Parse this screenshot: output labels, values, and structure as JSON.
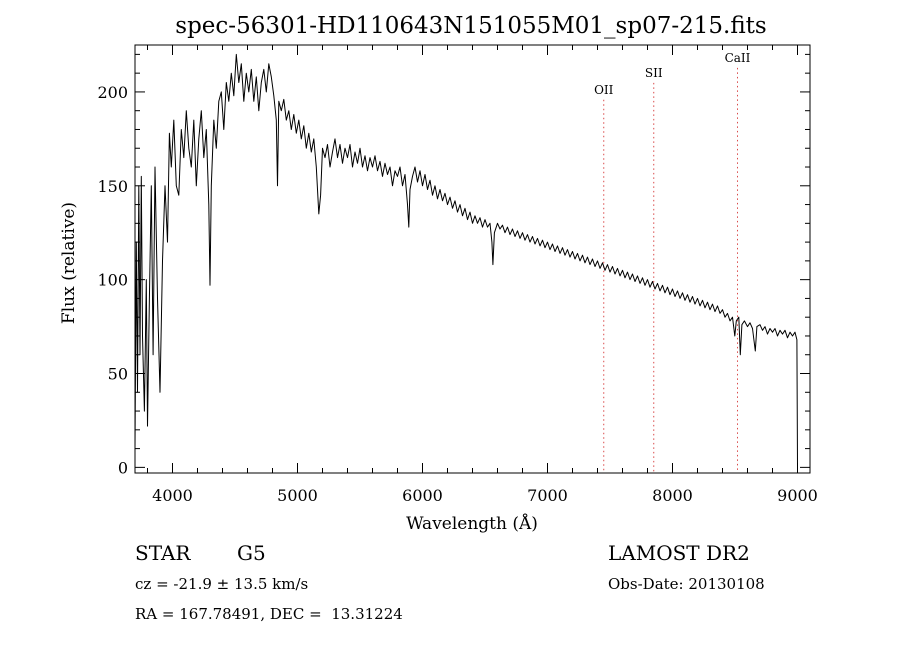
{
  "chart_data": {
    "type": "line",
    "title": "spec-56301-HD110643N151055M01_sp07-215.fits",
    "xlabel": "Wavelength (Å)",
    "ylabel": "Flux (relative)",
    "xlim": [
      3700,
      9100
    ],
    "ylim": [
      -3,
      225
    ],
    "x_ticks": [
      4000,
      5000,
      6000,
      7000,
      8000,
      9000
    ],
    "y_ticks": [
      0,
      50,
      100,
      150,
      200
    ],
    "grid": false,
    "line_color": "#000000",
    "series": [
      {
        "values": [
          [
            3700,
            10
          ],
          [
            3710,
            120
          ],
          [
            3720,
            40
          ],
          [
            3730,
            150
          ],
          [
            3740,
            60
          ],
          [
            3750,
            155
          ],
          [
            3760,
            70
          ],
          [
            3775,
            30
          ],
          [
            3790,
            100
          ],
          [
            3800,
            22
          ],
          [
            3815,
            90
          ],
          [
            3830,
            150
          ],
          [
            3845,
            60
          ],
          [
            3860,
            160
          ],
          [
            3880,
            90
          ],
          [
            3900,
            40
          ],
          [
            3920,
            110
          ],
          [
            3940,
            150
          ],
          [
            3960,
            120
          ],
          [
            3975,
            178
          ],
          [
            3990,
            160
          ],
          [
            4010,
            185
          ],
          [
            4030,
            150
          ],
          [
            4050,
            145
          ],
          [
            4070,
            180
          ],
          [
            4090,
            165
          ],
          [
            4110,
            190
          ],
          [
            4130,
            170
          ],
          [
            4150,
            160
          ],
          [
            4170,
            185
          ],
          [
            4190,
            150
          ],
          [
            4210,
            175
          ],
          [
            4230,
            190
          ],
          [
            4250,
            165
          ],
          [
            4270,
            180
          ],
          [
            4290,
            140
          ],
          [
            4300,
            97
          ],
          [
            4310,
            150
          ],
          [
            4330,
            185
          ],
          [
            4350,
            170
          ],
          [
            4370,
            195
          ],
          [
            4390,
            200
          ],
          [
            4410,
            180
          ],
          [
            4430,
            205
          ],
          [
            4450,
            195
          ],
          [
            4470,
            210
          ],
          [
            4490,
            198
          ],
          [
            4510,
            220
          ],
          [
            4530,
            205
          ],
          [
            4550,
            215
          ],
          [
            4570,
            195
          ],
          [
            4590,
            210
          ],
          [
            4610,
            200
          ],
          [
            4630,
            212
          ],
          [
            4650,
            195
          ],
          [
            4670,
            208
          ],
          [
            4690,
            190
          ],
          [
            4710,
            205
          ],
          [
            4730,
            212
          ],
          [
            4750,
            200
          ],
          [
            4770,
            215
          ],
          [
            4790,
            208
          ],
          [
            4810,
            198
          ],
          [
            4830,
            185
          ],
          [
            4840,
            150
          ],
          [
            4850,
            195
          ],
          [
            4870,
            190
          ],
          [
            4890,
            196
          ],
          [
            4910,
            185
          ],
          [
            4930,
            190
          ],
          [
            4950,
            180
          ],
          [
            4970,
            188
          ],
          [
            4990,
            178
          ],
          [
            5010,
            185
          ],
          [
            5030,
            175
          ],
          [
            5050,
            182
          ],
          [
            5070,
            170
          ],
          [
            5090,
            178
          ],
          [
            5110,
            168
          ],
          [
            5130,
            175
          ],
          [
            5150,
            160
          ],
          [
            5170,
            135
          ],
          [
            5185,
            145
          ],
          [
            5200,
            170
          ],
          [
            5220,
            165
          ],
          [
            5240,
            172
          ],
          [
            5260,
            160
          ],
          [
            5280,
            168
          ],
          [
            5300,
            175
          ],
          [
            5320,
            165
          ],
          [
            5340,
            172
          ],
          [
            5360,
            162
          ],
          [
            5380,
            170
          ],
          [
            5400,
            165
          ],
          [
            5420,
            172
          ],
          [
            5440,
            160
          ],
          [
            5460,
            168
          ],
          [
            5480,
            162
          ],
          [
            5500,
            170
          ],
          [
            5520,
            160
          ],
          [
            5540,
            166
          ],
          [
            5560,
            158
          ],
          [
            5580,
            165
          ],
          [
            5600,
            160
          ],
          [
            5620,
            166
          ],
          [
            5640,
            158
          ],
          [
            5660,
            163
          ],
          [
            5680,
            155
          ],
          [
            5700,
            162
          ],
          [
            5720,
            156
          ],
          [
            5740,
            160
          ],
          [
            5760,
            150
          ],
          [
            5780,
            158
          ],
          [
            5800,
            155
          ],
          [
            5820,
            160
          ],
          [
            5840,
            150
          ],
          [
            5860,
            156
          ],
          [
            5880,
            140
          ],
          [
            5890,
            128
          ],
          [
            5900,
            148
          ],
          [
            5920,
            155
          ],
          [
            5940,
            160
          ],
          [
            5960,
            152
          ],
          [
            5980,
            158
          ],
          [
            6000,
            150
          ],
          [
            6020,
            156
          ],
          [
            6040,
            148
          ],
          [
            6060,
            153
          ],
          [
            6080,
            145
          ],
          [
            6100,
            150
          ],
          [
            6120,
            143
          ],
          [
            6140,
            148
          ],
          [
            6160,
            142
          ],
          [
            6180,
            146
          ],
          [
            6200,
            140
          ],
          [
            6220,
            144
          ],
          [
            6240,
            138
          ],
          [
            6260,
            142
          ],
          [
            6280,
            136
          ],
          [
            6300,
            140
          ],
          [
            6320,
            134
          ],
          [
            6340,
            138
          ],
          [
            6360,
            132
          ],
          [
            6380,
            136
          ],
          [
            6400,
            130
          ],
          [
            6420,
            134
          ],
          [
            6440,
            130
          ],
          [
            6460,
            133
          ],
          [
            6480,
            128
          ],
          [
            6500,
            132
          ],
          [
            6520,
            128
          ],
          [
            6540,
            130
          ],
          [
            6555,
            120
          ],
          [
            6563,
            108
          ],
          [
            6575,
            125
          ],
          [
            6600,
            130
          ],
          [
            6620,
            127
          ],
          [
            6640,
            129
          ],
          [
            6660,
            125
          ],
          [
            6680,
            128
          ],
          [
            6700,
            124
          ],
          [
            6720,
            127
          ],
          [
            6740,
            123
          ],
          [
            6760,
            126
          ],
          [
            6780,
            122
          ],
          [
            6800,
            125
          ],
          [
            6820,
            121
          ],
          [
            6840,
            124
          ],
          [
            6860,
            120
          ],
          [
            6880,
            123
          ],
          [
            6900,
            119
          ],
          [
            6920,
            122
          ],
          [
            6940,
            118
          ],
          [
            6960,
            121
          ],
          [
            6980,
            117
          ],
          [
            7000,
            120
          ],
          [
            7020,
            116
          ],
          [
            7040,
            119
          ],
          [
            7060,
            115
          ],
          [
            7080,
            118
          ],
          [
            7100,
            114
          ],
          [
            7120,
            117
          ],
          [
            7140,
            113
          ],
          [
            7160,
            116
          ],
          [
            7180,
            112
          ],
          [
            7200,
            115
          ],
          [
            7220,
            111
          ],
          [
            7240,
            114
          ],
          [
            7260,
            110
          ],
          [
            7280,
            113
          ],
          [
            7300,
            109
          ],
          [
            7320,
            112
          ],
          [
            7340,
            108
          ],
          [
            7360,
            111
          ],
          [
            7380,
            107
          ],
          [
            7400,
            110
          ],
          [
            7420,
            106
          ],
          [
            7440,
            109
          ],
          [
            7460,
            105
          ],
          [
            7480,
            108
          ],
          [
            7500,
            104
          ],
          [
            7520,
            107
          ],
          [
            7540,
            103
          ],
          [
            7560,
            106
          ],
          [
            7580,
            102
          ],
          [
            7600,
            105
          ],
          [
            7620,
            101
          ],
          [
            7640,
            104
          ],
          [
            7660,
            100
          ],
          [
            7680,
            103
          ],
          [
            7700,
            99
          ],
          [
            7720,
            102
          ],
          [
            7740,
            98
          ],
          [
            7760,
            101
          ],
          [
            7780,
            97
          ],
          [
            7800,
            100
          ],
          [
            7820,
            96
          ],
          [
            7840,
            99
          ],
          [
            7860,
            95
          ],
          [
            7880,
            98
          ],
          [
            7900,
            94
          ],
          [
            7920,
            97
          ],
          [
            7940,
            93
          ],
          [
            7960,
            96
          ],
          [
            7980,
            92
          ],
          [
            8000,
            95
          ],
          [
            8020,
            91
          ],
          [
            8040,
            94
          ],
          [
            8060,
            90
          ],
          [
            8080,
            93
          ],
          [
            8100,
            89
          ],
          [
            8120,
            92
          ],
          [
            8140,
            88
          ],
          [
            8160,
            91
          ],
          [
            8180,
            87
          ],
          [
            8200,
            90
          ],
          [
            8220,
            86
          ],
          [
            8240,
            89
          ],
          [
            8260,
            85
          ],
          [
            8280,
            88
          ],
          [
            8300,
            84
          ],
          [
            8320,
            87
          ],
          [
            8340,
            83
          ],
          [
            8360,
            86
          ],
          [
            8380,
            82
          ],
          [
            8400,
            84
          ],
          [
            8420,
            80
          ],
          [
            8440,
            82
          ],
          [
            8460,
            78
          ],
          [
            8480,
            80
          ],
          [
            8498,
            70
          ],
          [
            8510,
            78
          ],
          [
            8530,
            80
          ],
          [
            8542,
            60
          ],
          [
            8555,
            76
          ],
          [
            8575,
            78
          ],
          [
            8600,
            75
          ],
          [
            8620,
            77
          ],
          [
            8640,
            74
          ],
          [
            8662,
            62
          ],
          [
            8675,
            75
          ],
          [
            8700,
            76
          ],
          [
            8720,
            73
          ],
          [
            8740,
            75
          ],
          [
            8760,
            71
          ],
          [
            8780,
            74
          ],
          [
            8800,
            72
          ],
          [
            8820,
            74
          ],
          [
            8840,
            70
          ],
          [
            8860,
            73
          ],
          [
            8880,
            71
          ],
          [
            8900,
            73
          ],
          [
            8920,
            69
          ],
          [
            8940,
            72
          ],
          [
            8960,
            70
          ],
          [
            8980,
            72
          ],
          [
            8995,
            68
          ],
          [
            9000,
            0
          ]
        ]
      }
    ],
    "emission_lines": [
      {
        "label": "OII",
        "x": 7450,
        "label_y": 199
      },
      {
        "label": "SII",
        "x": 7850,
        "label_y": 208
      },
      {
        "label": "CaII",
        "x": 8520,
        "label_y": 216
      }
    ],
    "marker_color": "#d94a4a"
  },
  "info": {
    "object_type": "STAR",
    "spectral_class": "G5",
    "survey": "LAMOST DR2",
    "redshift": "cz = -21.9 ± 13.5 km/s",
    "obs_date": "Obs-Date: 20130108",
    "coords": "RA = 167.78491, DEC =  13.31224"
  }
}
